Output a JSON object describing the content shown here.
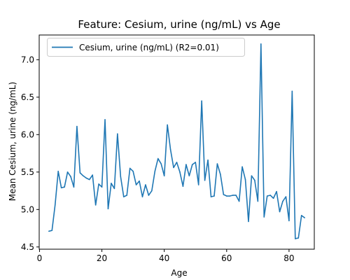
{
  "chart_data": {
    "type": "line",
    "title": "Feature: Cesium, urine (ng/mL) vs Age",
    "xlabel": "Age",
    "ylabel": "Mean Cesium, urine (ng/mL)",
    "xlim": [
      -0.1,
      88.1
    ],
    "ylim": [
      4.47,
      7.33
    ],
    "xticks": [
      0,
      20,
      40,
      60,
      80
    ],
    "yticks": [
      4.5,
      5.0,
      5.5,
      6.0,
      6.5,
      7.0
    ],
    "grid": false,
    "legend_position": "top-left",
    "series": [
      {
        "name": "Cesium, urine (ng/mL) (R2=0.01)",
        "color": "#1f77b4",
        "x": [
          3,
          4,
          5,
          6,
          7,
          8,
          9,
          10,
          11,
          12,
          13,
          14,
          15,
          16,
          17,
          18,
          19,
          20,
          21,
          22,
          23,
          24,
          25,
          26,
          27,
          28,
          29,
          30,
          31,
          32,
          33,
          34,
          35,
          36,
          37,
          38,
          39,
          40,
          41,
          42,
          43,
          44,
          45,
          46,
          47,
          48,
          49,
          50,
          51,
          52,
          53,
          54,
          55,
          56,
          57,
          58,
          59,
          60,
          61,
          62,
          63,
          64,
          65,
          66,
          67,
          68,
          69,
          70,
          71,
          72,
          73,
          74,
          75,
          76,
          77,
          78,
          79,
          80,
          81,
          82,
          83,
          84,
          85
        ],
        "values": [
          4.71,
          4.72,
          5.06,
          5.51,
          5.29,
          5.3,
          5.5,
          5.44,
          5.3,
          6.11,
          5.49,
          5.45,
          5.42,
          5.4,
          5.46,
          5.06,
          5.34,
          5.3,
          6.2,
          5.01,
          5.35,
          5.28,
          6.01,
          5.44,
          5.17,
          5.19,
          5.55,
          5.51,
          5.33,
          5.38,
          5.17,
          5.33,
          5.19,
          5.25,
          5.51,
          5.68,
          5.61,
          5.45,
          6.13,
          5.8,
          5.56,
          5.63,
          5.5,
          5.31,
          5.6,
          5.45,
          5.6,
          5.63,
          5.33,
          6.45,
          5.39,
          5.66,
          5.17,
          5.18,
          5.61,
          5.47,
          5.2,
          5.18,
          5.18,
          5.19,
          5.19,
          5.11,
          5.57,
          5.4,
          4.84,
          5.45,
          5.39,
          5.11,
          7.21,
          4.9,
          5.18,
          5.19,
          5.15,
          5.24,
          4.97,
          5.11,
          5.17,
          4.85,
          6.58,
          4.61,
          4.62,
          4.92,
          4.89
        ]
      }
    ]
  }
}
